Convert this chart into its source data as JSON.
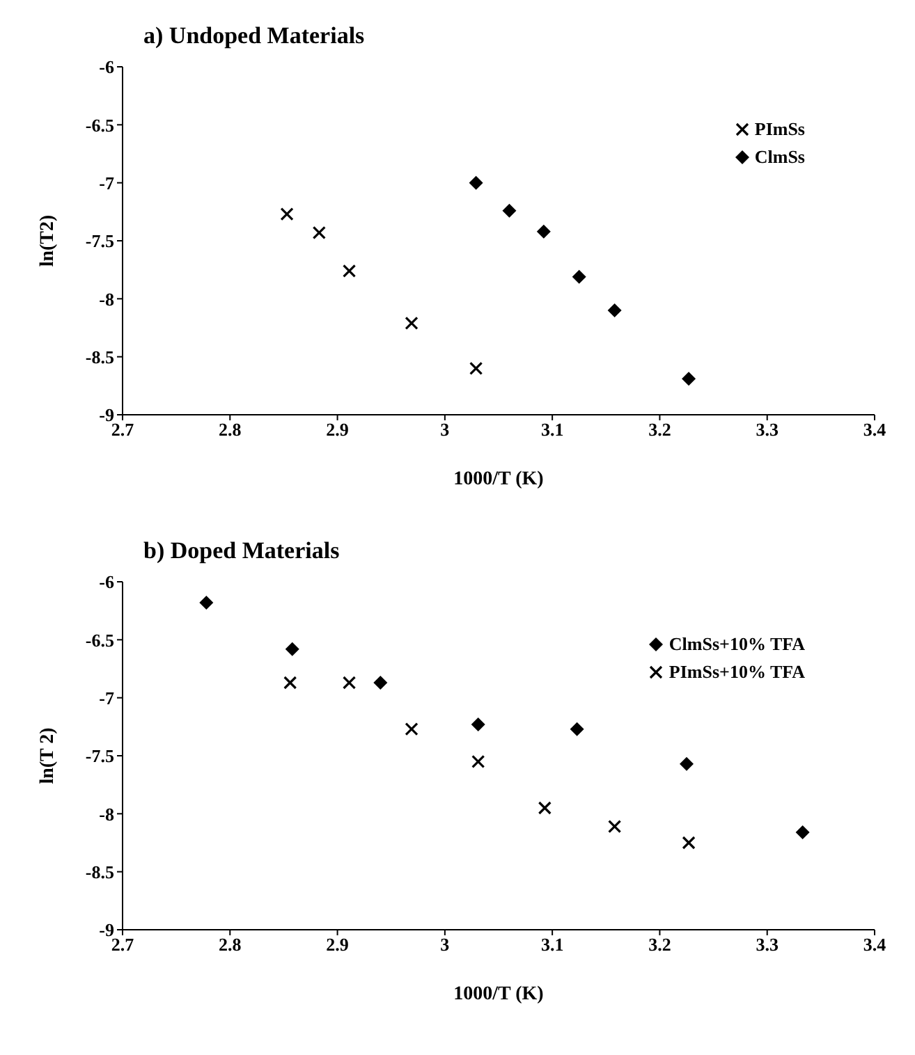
{
  "chart_data": [
    {
      "type": "scatter",
      "title": "a) Undoped Materials",
      "xlabel": "1000/T (K)",
      "ylabel": "ln(T2)",
      "xlim": [
        2.7,
        3.4
      ],
      "xticks": [
        2.7,
        2.8,
        2.9,
        3,
        3.1,
        3.2,
        3.3,
        3.4
      ],
      "ylim": [
        -9,
        -6
      ],
      "yticks": [
        -9,
        -8.5,
        -8,
        -7.5,
        -7,
        -6.5,
        -6
      ],
      "grid": false,
      "legend": "top right",
      "series": [
        {
          "name": "PImSs",
          "color": "#000000",
          "marker": "cross",
          "x": [
            2.853,
            2.883,
            2.911,
            2.969,
            3.029
          ],
          "values": [
            -7.27,
            -7.43,
            -7.76,
            -8.21,
            -8.6
          ]
        },
        {
          "name": "ClmSs",
          "color": "#000000",
          "marker": "diamond",
          "x": [
            3.029,
            3.06,
            3.092,
            3.125,
            3.158,
            3.227
          ],
          "values": [
            -7.0,
            -7.24,
            -7.42,
            -7.81,
            -8.1,
            -8.69
          ]
        }
      ]
    },
    {
      "type": "scatter",
      "title": "b) Doped Materials",
      "xlabel": "1000/T (K)",
      "ylabel": "ln(T 2)",
      "xlim": [
        2.7,
        3.4
      ],
      "xticks": [
        2.7,
        2.8,
        2.9,
        3,
        3.1,
        3.2,
        3.3,
        3.4
      ],
      "ylim": [
        -9,
        -6
      ],
      "yticks": [
        -9,
        -8.5,
        -8,
        -7.5,
        -7,
        -6.5,
        -6
      ],
      "grid": false,
      "legend": "top right",
      "series": [
        {
          "name": "ClmSs+10% TFA",
          "color": "#000000",
          "marker": "diamond",
          "x": [
            2.778,
            2.858,
            2.94,
            3.031,
            3.123,
            3.225,
            3.333
          ],
          "values": [
            -6.18,
            -6.58,
            -6.87,
            -7.23,
            -7.27,
            -7.57,
            -8.16
          ]
        },
        {
          "name": "PImSs+10% TFA",
          "color": "#000000",
          "marker": "cross",
          "x": [
            2.856,
            2.911,
            2.969,
            3.031,
            3.093,
            3.158,
            3.227
          ],
          "values": [
            -6.87,
            -6.87,
            -7.27,
            -7.55,
            -7.95,
            -8.11,
            -8.25
          ]
        }
      ]
    }
  ]
}
